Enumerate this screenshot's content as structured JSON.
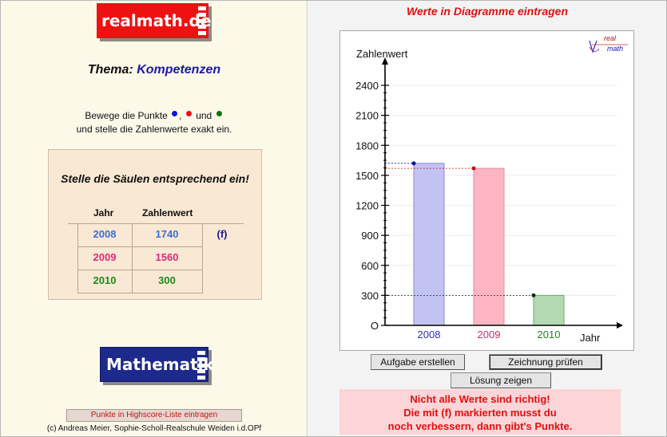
{
  "header": {
    "logo_text": "realmath.de",
    "theme_label": "Thema:",
    "theme_value": "Kompetenzen"
  },
  "instructions": {
    "line1_a": "Bewege die Punkte",
    "line1_b": ",",
    "line1_c": "und",
    "line2": "und stelle die Zahlenwerte exakt ein.",
    "dot_colors": [
      "#1010dd",
      "#ee1010",
      "#107010"
    ]
  },
  "task": {
    "title": "Stelle die Säulen entsprechend ein!",
    "col_year": "Jahr",
    "col_value": "Zahlenwert",
    "rows": [
      {
        "year": "2008",
        "value": "1740",
        "mark": "(f)",
        "color": "#3a6fd8"
      },
      {
        "year": "2009",
        "value": "1560",
        "mark": "",
        "color": "#dd2a7a"
      },
      {
        "year": "2010",
        "value": "300",
        "mark": "",
        "color": "#1a8a1a"
      }
    ]
  },
  "footer": {
    "logo_text": "Mathematik",
    "highscore_button": "Punkte in Highscore-Liste eintragen",
    "credit": "(c) Andreas Meier, Sophie-Scholl-Realschule Weiden i.d.OPf"
  },
  "right": {
    "title": "Werte in Diagramme eintragen",
    "corner_logo_top": "real",
    "corner_logo_bottom": "math",
    "btn_create": "Aufgabe erstellen",
    "btn_check": "Zeichnung prüfen",
    "btn_solution": "Lösung zeigen",
    "message": [
      "Nicht alle Werte sind richtig!",
      "Die mit (f) markierten musst du",
      "noch verbessern, dann gibt's Punkte."
    ]
  },
  "chart_data": {
    "type": "bar",
    "ylabel": "Zahlenwert",
    "xlabel": "Jahr",
    "ylim": [
      0,
      2400
    ],
    "y_ticks": [
      0,
      300,
      600,
      900,
      1200,
      1500,
      1800,
      2100,
      2400
    ],
    "y_tick_labels": [
      "O",
      "300",
      "600",
      "900",
      "1200",
      "1500",
      "1800",
      "2100",
      "2400"
    ],
    "grid": true,
    "categories": [
      "2008",
      "2009",
      "2010"
    ],
    "values": [
      1620,
      1570,
      300
    ],
    "bar_fill": [
      "#c3c3f3",
      "#fdb5c4",
      "#b3d9b3"
    ],
    "bar_stroke": [
      "#8888d0",
      "#e090a0",
      "#70a870"
    ],
    "label_colors": [
      "#3030b0",
      "#c03070",
      "#208020"
    ],
    "dot_colors": [
      "#1010a0",
      "#c01010",
      "#103010"
    ]
  }
}
